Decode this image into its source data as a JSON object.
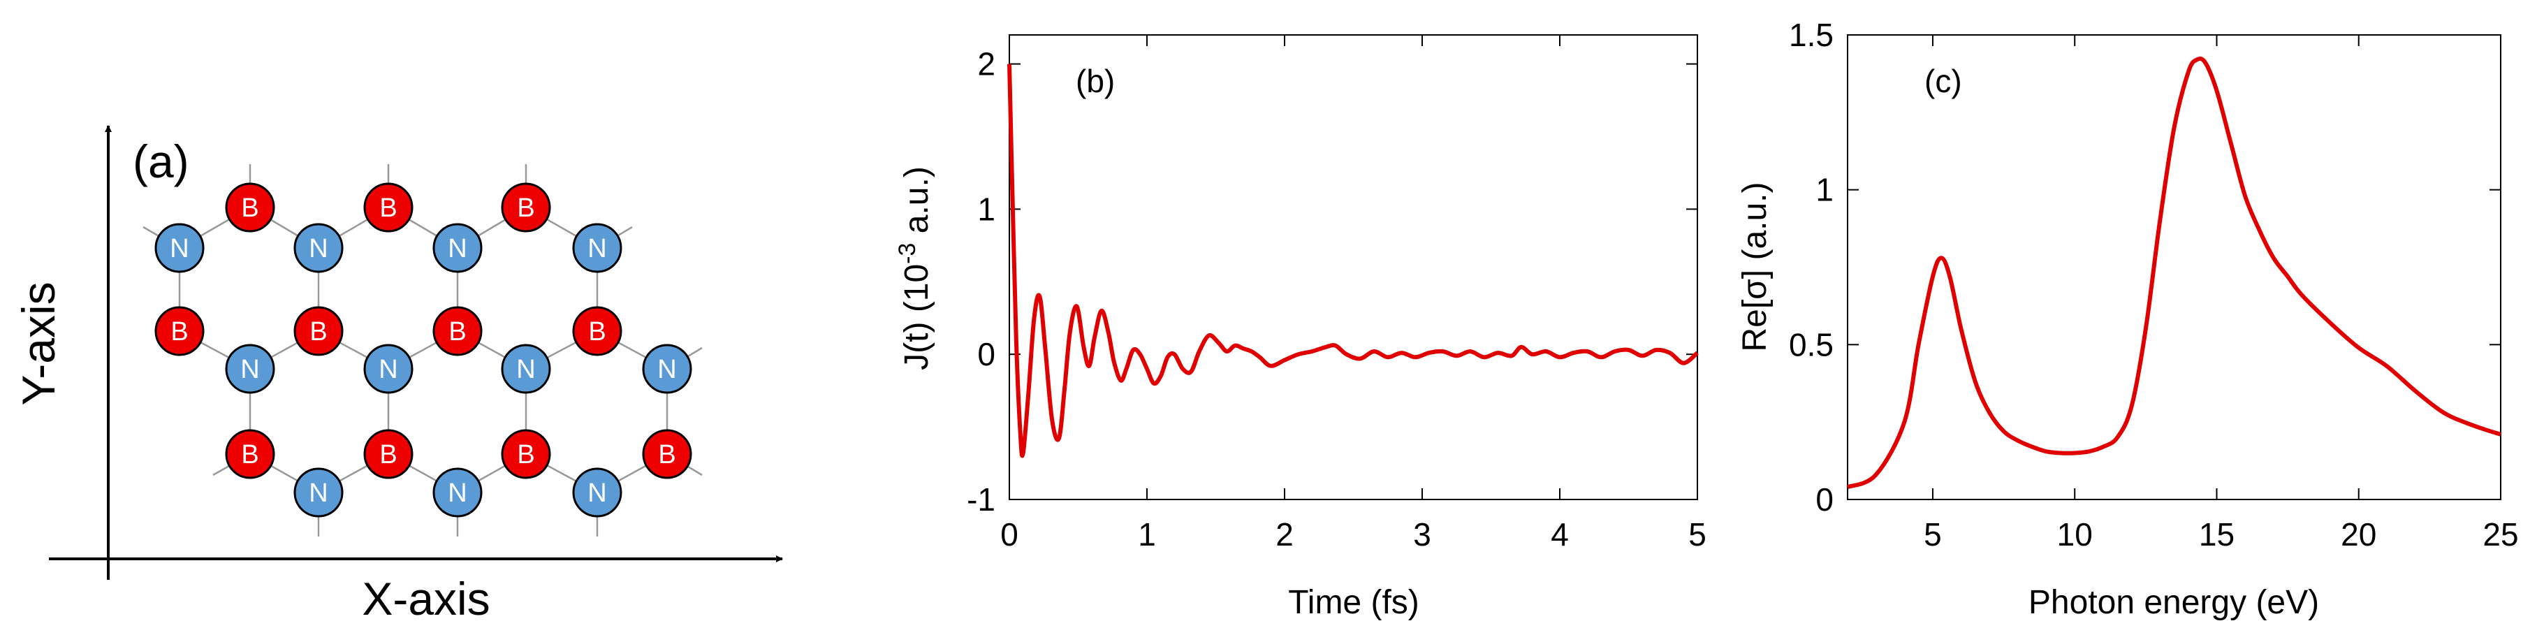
{
  "colors": {
    "boron": "#ee0000",
    "nitrogen": "#5b9bd5",
    "bond": "#999999",
    "curve": "#e00000",
    "axis": "#000000"
  },
  "panel_a": {
    "label": "(a)",
    "x_axis_label": "X-axis",
    "y_axis_label": "Y-axis",
    "atom_b": "B",
    "atom_n": "N",
    "lattice": "hexagonal boron nitride (h-BN) monolayer"
  },
  "chart_data": [
    {
      "type": "line",
      "panel": "(b)",
      "xlabel": "Time (fs)",
      "ylabel_main": "J(t) (10",
      "ylabel_sup": "-3",
      "ylabel_end": " a.u.)",
      "xlim": [
        0,
        5
      ],
      "ylim": [
        -1,
        2.2
      ],
      "xticks": [
        0,
        1,
        2,
        3,
        4,
        5
      ],
      "yticks": [
        -1,
        0,
        1,
        2
      ],
      "series": [
        {
          "x": [
            0,
            0.02,
            0.05,
            0.08,
            0.1,
            0.14,
            0.18,
            0.22,
            0.26,
            0.31,
            0.36,
            0.4,
            0.44,
            0.49,
            0.54,
            0.58,
            0.62,
            0.67,
            0.72,
            0.76,
            0.81,
            0.85,
            0.9,
            0.95,
            1.0,
            1.05,
            1.1,
            1.15,
            1.2,
            1.26,
            1.32,
            1.38,
            1.45,
            1.52,
            1.58,
            1.64,
            1.7,
            1.76,
            1.82,
            1.9,
            2.0,
            2.1,
            2.2,
            2.3,
            2.37,
            2.45,
            2.55,
            2.65,
            2.75,
            2.85,
            2.95,
            3.05,
            3.15,
            3.25,
            3.35,
            3.45,
            3.55,
            3.65,
            3.72,
            3.8,
            3.9,
            4.0,
            4.1,
            4.2,
            4.3,
            4.4,
            4.5,
            4.6,
            4.7,
            4.8,
            4.9,
            5.0
          ],
          "y": [
            2.0,
            1.2,
            0.1,
            -0.55,
            -0.68,
            -0.25,
            0.25,
            0.4,
            0.05,
            -0.45,
            -0.58,
            -0.25,
            0.15,
            0.33,
            0.05,
            -0.08,
            0.12,
            0.3,
            0.15,
            -0.05,
            -0.18,
            -0.1,
            0.03,
            0.0,
            -0.1,
            -0.2,
            -0.15,
            -0.02,
            0.0,
            -0.1,
            -0.12,
            0.02,
            0.13,
            0.08,
            0.02,
            0.06,
            0.04,
            0.02,
            -0.02,
            -0.08,
            -0.04,
            0.0,
            0.02,
            0.05,
            0.06,
            0.0,
            -0.03,
            0.02,
            -0.02,
            0.01,
            -0.02,
            0.01,
            0.02,
            -0.01,
            0.02,
            -0.02,
            0.01,
            -0.01,
            0.05,
            0.0,
            0.02,
            -0.02,
            0.01,
            0.02,
            -0.02,
            0.02,
            0.03,
            -0.01,
            0.03,
            0.01,
            -0.06,
            0.01
          ]
        }
      ]
    },
    {
      "type": "line",
      "panel": "(c)",
      "xlabel": "Photon energy (eV)",
      "ylabel_main": "Re[σ] (a.u.)",
      "xlim": [
        2,
        25
      ],
      "ylim": [
        0,
        1.5
      ],
      "xticks": [
        5,
        10,
        15,
        20,
        25
      ],
      "yticks": [
        0,
        0.5,
        1,
        1.5
      ],
      "series": [
        {
          "x": [
            2.0,
            3.0,
            4.0,
            4.5,
            5.0,
            5.3,
            5.6,
            6.0,
            6.5,
            7.0,
            7.5,
            8.0,
            8.5,
            9.0,
            9.5,
            10.0,
            10.5,
            11.0,
            11.5,
            12.0,
            12.5,
            13.0,
            13.5,
            14.0,
            14.3,
            14.6,
            15.0,
            15.5,
            16.0,
            16.5,
            17.0,
            17.5,
            18.0,
            19.0,
            20.0,
            21.0,
            22.0,
            23.0,
            24.0,
            25.0
          ],
          "y": [
            0.04,
            0.08,
            0.25,
            0.5,
            0.72,
            0.78,
            0.72,
            0.55,
            0.38,
            0.28,
            0.22,
            0.19,
            0.17,
            0.155,
            0.15,
            0.15,
            0.155,
            0.17,
            0.2,
            0.3,
            0.55,
            0.9,
            1.2,
            1.38,
            1.42,
            1.41,
            1.32,
            1.15,
            0.98,
            0.87,
            0.78,
            0.72,
            0.66,
            0.57,
            0.49,
            0.43,
            0.35,
            0.28,
            0.24,
            0.21
          ]
        }
      ]
    }
  ]
}
